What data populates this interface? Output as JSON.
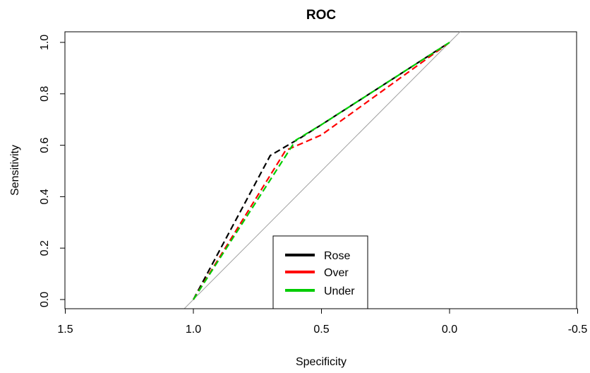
{
  "chart_data": {
    "type": "line",
    "title": "ROC",
    "xlabel": "Specificity",
    "ylabel": "Sensitivity",
    "xlim": [
      1.5,
      -0.5
    ],
    "ylim": [
      0.0,
      1.0
    ],
    "x_reversed": true,
    "x_ticks": [
      1.5,
      1.0,
      0.5,
      0.0,
      -0.5
    ],
    "x_tick_labels": [
      "1.5",
      "1.0",
      "0.5",
      "0.0",
      "-0.5"
    ],
    "y_ticks": [
      0.0,
      0.2,
      0.4,
      0.6,
      0.8,
      1.0
    ],
    "y_tick_labels": [
      "0.0",
      "0.2",
      "0.4",
      "0.6",
      "0.8",
      "1.0"
    ],
    "grid": false,
    "legend_position": "bottom-center",
    "reference_line": {
      "from": [
        1.0,
        0.0
      ],
      "to": [
        0.0,
        1.0
      ],
      "color": "#a0a0a0"
    },
    "series": [
      {
        "name": "Rose",
        "color": "#000000",
        "dash": true,
        "points": [
          [
            1.0,
            0.0
          ],
          [
            0.7,
            0.56
          ],
          [
            0.58,
            0.63
          ],
          [
            0.5,
            0.68
          ],
          [
            0.0,
            1.0
          ]
        ]
      },
      {
        "name": "Over",
        "color": "#ff0000",
        "dash": true,
        "points": [
          [
            1.0,
            0.0
          ],
          [
            0.64,
            0.58
          ],
          [
            0.5,
            0.64
          ],
          [
            0.0,
            1.0
          ]
        ]
      },
      {
        "name": "Under",
        "color": "#00cc00",
        "dash": true,
        "points": [
          [
            1.0,
            0.0
          ],
          [
            0.6,
            0.62
          ],
          [
            0.5,
            0.68
          ],
          [
            0.0,
            1.0
          ]
        ]
      }
    ]
  }
}
